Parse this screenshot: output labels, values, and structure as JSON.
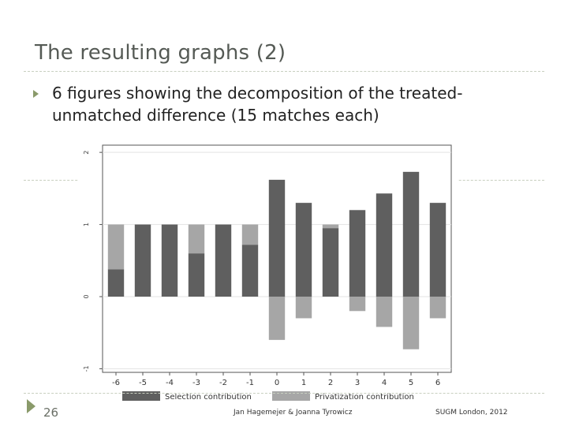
{
  "slide": {
    "title": "The resulting graphs (2)",
    "bullet": "6 figures showing the decomposition of the treated-unmatched difference (15 matches each)",
    "number": "26",
    "footer_center": "Jan Hagemejer & Joanna Tyrowicz",
    "footer_right": "SUGM London, 2012"
  },
  "colors": {
    "dark": "#5f5f5f",
    "light": "#a6a6a6",
    "accent": "#8a9a6a"
  },
  "chart_data": {
    "type": "bar",
    "stacked": true,
    "categories": [
      "-6",
      "-5",
      "-4",
      "-3",
      "-2",
      "-1",
      "0",
      "1",
      "2",
      "3",
      "4",
      "5",
      "6"
    ],
    "series": [
      {
        "name": "Selection contribution",
        "values": [
          0.38,
          1.0,
          1.0,
          0.6,
          1.0,
          0.72,
          1.62,
          1.3,
          0.95,
          1.2,
          1.43,
          1.73,
          1.3
        ]
      },
      {
        "name": "Privatization contribution",
        "values": [
          0.62,
          0.0,
          0.0,
          0.4,
          0.0,
          0.28,
          -0.6,
          -0.3,
          0.05,
          -0.2,
          -0.42,
          -0.73,
          -0.3
        ]
      }
    ],
    "yticks": [
      "-1",
      "0",
      "1",
      "2"
    ],
    "ylim": [
      -1.05,
      2.1
    ],
    "grid": true,
    "legend": "bottom"
  }
}
